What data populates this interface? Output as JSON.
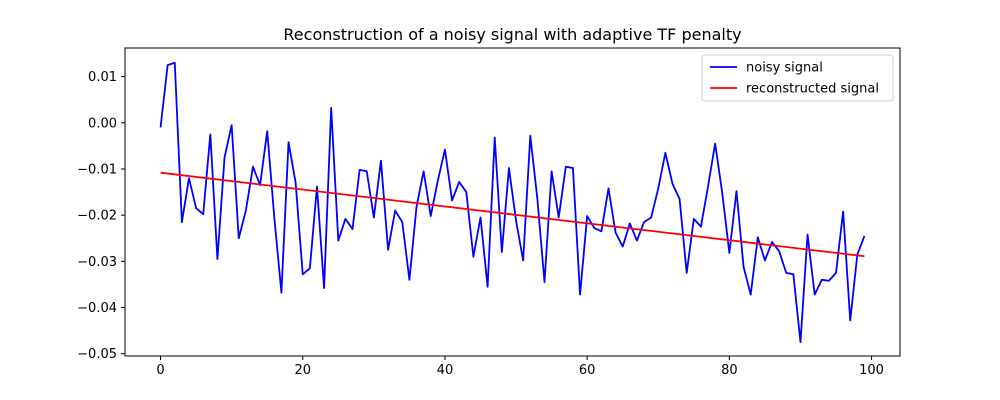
{
  "chart_data": {
    "type": "line",
    "title": "Reconstruction of a noisy signal with adaptive TF penalty",
    "xlabel": "",
    "ylabel": "",
    "xlim": [
      -5,
      104
    ],
    "ylim": [
      -0.0505,
      0.0162
    ],
    "xticks": [
      0,
      20,
      40,
      60,
      80,
      100
    ],
    "xtick_labels": [
      "0",
      "20",
      "40",
      "60",
      "80",
      "100"
    ],
    "yticks": [
      0.01,
      0.0,
      -0.01,
      -0.02,
      -0.03,
      -0.04,
      -0.05
    ],
    "ytick_labels": [
      "0.01",
      "0.00",
      "−0.01",
      "−0.02",
      "−0.03",
      "−0.04",
      "−0.05"
    ],
    "grid": false,
    "legend_position": "top-right",
    "series": [
      {
        "name": "noisy signal",
        "color": "#0000ff",
        "x": [
          0,
          1,
          2,
          3,
          4,
          5,
          6,
          7,
          8,
          9,
          10,
          11,
          12,
          13,
          14,
          15,
          16,
          17,
          18,
          19,
          20,
          21,
          22,
          23,
          24,
          25,
          26,
          27,
          28,
          29,
          30,
          31,
          32,
          33,
          34,
          35,
          36,
          37,
          38,
          39,
          40,
          41,
          42,
          43,
          44,
          45,
          46,
          47,
          48,
          49,
          50,
          51,
          52,
          53,
          54,
          55,
          56,
          57,
          58,
          59,
          60,
          61,
          62,
          63,
          64,
          65,
          66,
          67,
          68,
          69,
          70,
          71,
          72,
          73,
          74,
          75,
          76,
          77,
          78,
          79,
          80,
          81,
          82,
          83,
          84,
          85,
          86,
          87,
          88,
          89,
          90,
          91,
          92,
          93,
          94,
          95,
          96,
          97,
          98,
          99
        ],
        "y": [
          -0.001,
          0.0125,
          0.013,
          -0.0215,
          -0.012,
          -0.0185,
          -0.0198,
          -0.0025,
          -0.0295,
          -0.0075,
          -0.0005,
          -0.025,
          -0.019,
          -0.0095,
          -0.0135,
          -0.0018,
          -0.0205,
          -0.0368,
          -0.0042,
          -0.013,
          -0.0328,
          -0.0315,
          -0.0138,
          -0.0358,
          0.0032,
          -0.0255,
          -0.0208,
          -0.023,
          -0.0102,
          -0.0105,
          -0.0205,
          -0.0082,
          -0.0275,
          -0.019,
          -0.0215,
          -0.034,
          -0.0182,
          -0.0105,
          -0.0202,
          -0.0125,
          -0.0058,
          -0.0168,
          -0.0128,
          -0.015,
          -0.029,
          -0.0205,
          -0.0355,
          -0.0032,
          -0.028,
          -0.0098,
          -0.0212,
          -0.0298,
          -0.0028,
          -0.0165,
          -0.0345,
          -0.0105,
          -0.0205,
          -0.0095,
          -0.0098,
          -0.0372,
          -0.0202,
          -0.0228,
          -0.0235,
          -0.0142,
          -0.0238,
          -0.0268,
          -0.0218,
          -0.0255,
          -0.0215,
          -0.0205,
          -0.0142,
          -0.0065,
          -0.0132,
          -0.0165,
          -0.0325,
          -0.0208,
          -0.0225,
          -0.0138,
          -0.0045,
          -0.0152,
          -0.0282,
          -0.0148,
          -0.0312,
          -0.0372,
          -0.0248,
          -0.0298,
          -0.0258,
          -0.0278,
          -0.0325,
          -0.0328,
          -0.0475,
          -0.0242,
          -0.0372,
          -0.034,
          -0.0342,
          -0.0325,
          -0.0192,
          -0.0428,
          -0.0285,
          -0.0245
        ]
      },
      {
        "name": "reconstructed signal",
        "color": "#ff0000",
        "x": [
          0,
          99
        ],
        "y": [
          -0.0108,
          -0.0289
        ]
      }
    ]
  }
}
